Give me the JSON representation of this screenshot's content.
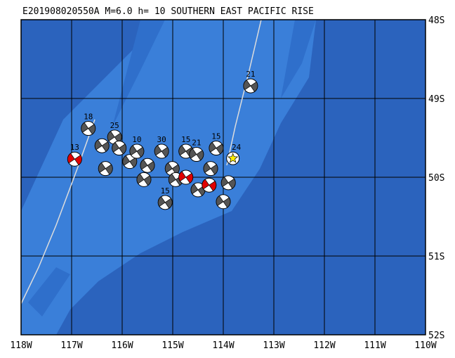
{
  "map": {
    "title": "E201908020550A M=6.0 h= 10 SOUTHERN EAST PACIFIC RISE",
    "lonlim": [
      -118,
      -110
    ],
    "latlim": [
      -48,
      -52
    ],
    "lon_ticks": [
      {
        "value": -118,
        "label": "118W"
      },
      {
        "value": -117,
        "label": "117W"
      },
      {
        "value": -116,
        "label": "116W"
      },
      {
        "value": -115,
        "label": "115W"
      },
      {
        "value": -114,
        "label": "114W"
      },
      {
        "value": -113,
        "label": "113W"
      },
      {
        "value": -112,
        "label": "112W"
      },
      {
        "value": -111,
        "label": "111W"
      },
      {
        "value": -110,
        "label": "110W"
      }
    ],
    "lat_ticks": [
      {
        "value": -48,
        "label": "48S"
      },
      {
        "value": -49,
        "label": "49S"
      },
      {
        "value": -50,
        "label": "50S"
      },
      {
        "value": -51,
        "label": "51S"
      },
      {
        "value": -52,
        "label": "52S"
      }
    ],
    "events": [
      {
        "lon": -113.46,
        "lat": -48.84,
        "label": "21",
        "color": "#555555"
      },
      {
        "lon": -116.67,
        "lat": -49.38,
        "label": "18",
        "color": "#555555"
      },
      {
        "lon": -116.94,
        "lat": -49.77,
        "label": "13",
        "color": "#e00000"
      },
      {
        "lon": -116.4,
        "lat": -49.6,
        "color": "#555555"
      },
      {
        "lon": -116.15,
        "lat": -49.49,
        "label": "25",
        "color": "#555555"
      },
      {
        "lon": -116.06,
        "lat": -49.63,
        "color": "#555555"
      },
      {
        "lon": -116.33,
        "lat": -49.89,
        "color": "#555555"
      },
      {
        "lon": -115.85,
        "lat": -49.8,
        "color": "#555555"
      },
      {
        "lon": -115.71,
        "lat": -49.67,
        "label": "10",
        "color": "#555555"
      },
      {
        "lon": -115.5,
        "lat": -49.85,
        "color": "#555555"
      },
      {
        "lon": -115.57,
        "lat": -50.03,
        "color": "#555555"
      },
      {
        "lon": -115.22,
        "lat": -49.67,
        "label": "30",
        "color": "#555555"
      },
      {
        "lon": -115.01,
        "lat": -49.89,
        "color": "#555555"
      },
      {
        "lon": -114.94,
        "lat": -50.03,
        "color": "#555555"
      },
      {
        "lon": -114.74,
        "lat": -49.67,
        "label": "15",
        "color": "#555555"
      },
      {
        "lon": -114.53,
        "lat": -49.71,
        "label": "21",
        "color": "#555555"
      },
      {
        "lon": -114.25,
        "lat": -49.89,
        "color": "#555555"
      },
      {
        "lon": -114.14,
        "lat": -49.63,
        "label": "15",
        "color": "#555555"
      },
      {
        "lon": -114.74,
        "lat": -50.0,
        "color": "#e00000"
      },
      {
        "lon": -114.5,
        "lat": -50.16,
        "color": "#555555"
      },
      {
        "lon": -114.28,
        "lat": -50.1,
        "color": "#e00000"
      },
      {
        "lon": -113.9,
        "lat": -50.07,
        "color": "#555555"
      },
      {
        "lon": -114.0,
        "lat": -50.31,
        "color": "#555555"
      },
      {
        "lon": -115.15,
        "lat": -50.32,
        "label": "15",
        "color": "#555555"
      }
    ],
    "main_event": {
      "lon": -113.81,
      "lat": -49.76,
      "label": "24",
      "color": "#ffee00"
    }
  }
}
